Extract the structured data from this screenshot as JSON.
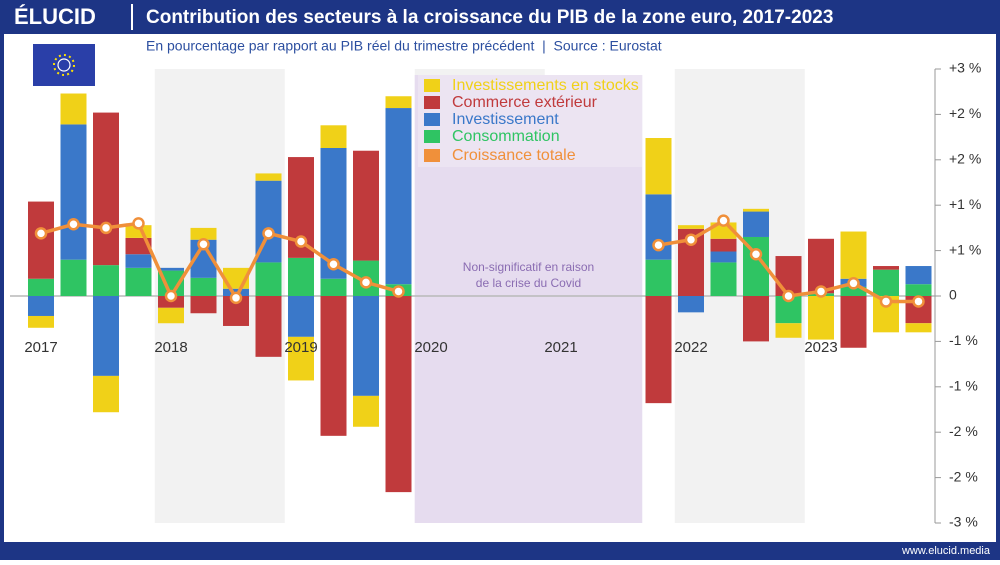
{
  "brand": "ÉLUCID",
  "footer": "www.elucid.media",
  "chart_data": {
    "type": "bar",
    "title": "Contribution des secteurs à la croissance du PIB de la zone euro, 2017-2023",
    "subtitle": "En pourcentage par rapport au PIB réel du trimestre précédent  |  Source : Eurostat",
    "annotation": [
      "Non-significatif en raison",
      "de la crise du Covid"
    ],
    "categories": [
      "2017",
      null,
      null,
      null,
      "2018",
      null,
      null,
      null,
      "2019",
      null,
      null,
      null,
      "2020",
      null,
      null,
      null,
      "2021",
      null,
      null,
      null,
      "2022",
      null,
      null,
      null,
      "2023",
      null,
      null,
      null
    ],
    "series": [
      {
        "name": "Investissements en stocks",
        "color": "#f0d118",
        "values": [
          -0.13,
          0.34,
          -0.4,
          0.14,
          -0.17,
          0.13,
          0.23,
          0.08,
          -0.48,
          0.25,
          -0.34,
          0.13,
          null,
          null,
          null,
          null,
          null,
          null,
          null,
          0.62,
          0.04,
          0.18,
          0.03,
          -0.16,
          -0.48,
          0.52,
          -0.4,
          -0.1
        ]
      },
      {
        "name": "Commerce extérieur",
        "color": "#c03a3c",
        "values": [
          0.85,
          0,
          1.68,
          0.18,
          -0.13,
          -0.19,
          -0.33,
          -0.67,
          1.11,
          -1.54,
          1.21,
          -2.16,
          null,
          null,
          null,
          null,
          null,
          null,
          null,
          -1.18,
          0.74,
          0.14,
          -0.5,
          0.44,
          0.6,
          -0.57,
          0.04,
          -0.3
        ]
      },
      {
        "name": "Investissement",
        "color": "#3a78c9",
        "values": [
          -0.22,
          1.49,
          -0.88,
          0.15,
          0.03,
          0.42,
          0.08,
          0.9,
          -0.45,
          1.44,
          -1.1,
          1.94,
          null,
          null,
          null,
          null,
          null,
          null,
          null,
          0.72,
          -0.18,
          0.12,
          0.28,
          0,
          0,
          0.09,
          0,
          0.2
        ]
      },
      {
        "name": "Consommation",
        "color": "#2fc463",
        "values": [
          0.19,
          0.4,
          0.34,
          0.31,
          0.28,
          0.2,
          0,
          0.37,
          0.42,
          0.19,
          0.39,
          0.13,
          null,
          null,
          null,
          null,
          null,
          null,
          null,
          0.4,
          0,
          0.37,
          0.65,
          -0.3,
          0.03,
          0.1,
          0.29,
          0.13
        ]
      },
      {
        "name": "Croissance totale",
        "color": "#f0903a",
        "type": "line",
        "values": [
          0.69,
          0.79,
          0.75,
          0.8,
          0,
          0.57,
          -0.02,
          0.69,
          0.6,
          0.35,
          0.15,
          0.05,
          null,
          null,
          null,
          null,
          null,
          null,
          null,
          0.56,
          0.62,
          0.83,
          0.46,
          0,
          0.05,
          0.14,
          -0.06,
          -0.06
        ]
      }
    ],
    "ylim": [
      -2.5,
      2.5
    ],
    "yticks": [
      {
        "value": 2.5,
        "label": "+3 %"
      },
      {
        "value": 2,
        "label": "+2 %"
      },
      {
        "value": 1.5,
        "label": "+2 %"
      },
      {
        "value": 1,
        "label": "+1 %"
      },
      {
        "value": 0.5,
        "label": "+1 %"
      },
      0,
      {
        "value": -0.5,
        "label": "-1 %"
      },
      {
        "value": -1,
        "label": "-1 %"
      },
      {
        "value": -1.5,
        "label": "-2 %"
      },
      {
        "value": -2,
        "label": "-2 %"
      },
      {
        "value": -2.5,
        "label": "-3 %"
      }
    ],
    "grid": false
  }
}
